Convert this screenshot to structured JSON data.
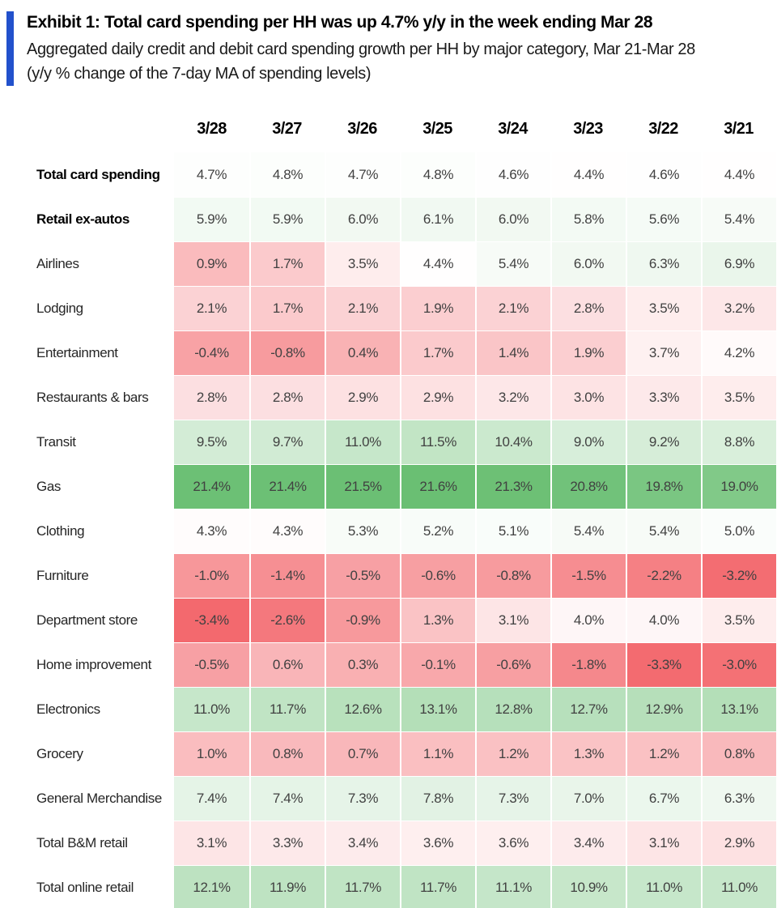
{
  "header": {
    "title": "Exhibit 1: Total card spending per HH was up 4.7% y/y in the week ending Mar 28",
    "subtitle_line1": "Aggregated daily credit and debit card spending growth per HH by major category, Mar 21-Mar 28",
    "subtitle_line2": "(y/y % change of the 7-day MA of spending levels)",
    "accent_bar_color": "#2251cc"
  },
  "chart_data": {
    "type": "heatmap",
    "title": "Aggregated daily credit and debit card spending growth per HH by major category, Mar 21-Mar 28 (y/y % change of the 7-day MA of spending levels)",
    "value_unit": "percent",
    "value_format": "one_decimal_percent",
    "columns": [
      "3/28",
      "3/27",
      "3/26",
      "3/25",
      "3/24",
      "3/23",
      "3/22",
      "3/21"
    ],
    "rows": [
      {
        "label": "Total card spending",
        "bold": true,
        "values": [
          4.7,
          4.8,
          4.7,
          4.8,
          4.6,
          4.4,
          4.6,
          4.4
        ]
      },
      {
        "label": "Retail ex-autos",
        "bold": true,
        "values": [
          5.9,
          5.9,
          6.0,
          6.1,
          6.0,
          5.8,
          5.6,
          5.4
        ]
      },
      {
        "label": "Airlines",
        "bold": false,
        "values": [
          0.9,
          1.7,
          3.5,
          4.4,
          5.4,
          6.0,
          6.3,
          6.9
        ]
      },
      {
        "label": "Lodging",
        "bold": false,
        "values": [
          2.1,
          1.7,
          2.1,
          1.9,
          2.1,
          2.8,
          3.5,
          3.2
        ]
      },
      {
        "label": "Entertainment",
        "bold": false,
        "values": [
          -0.4,
          -0.8,
          0.4,
          1.7,
          1.4,
          1.9,
          3.7,
          4.2
        ]
      },
      {
        "label": "Restaurants & bars",
        "bold": false,
        "values": [
          2.8,
          2.8,
          2.9,
          2.9,
          3.2,
          3.0,
          3.3,
          3.5
        ]
      },
      {
        "label": "Transit",
        "bold": false,
        "values": [
          9.5,
          9.7,
          11.0,
          11.5,
          10.4,
          9.0,
          9.2,
          8.8
        ]
      },
      {
        "label": "Gas",
        "bold": false,
        "values": [
          21.4,
          21.4,
          21.5,
          21.6,
          21.3,
          20.8,
          19.8,
          19.0
        ]
      },
      {
        "label": "Clothing",
        "bold": false,
        "values": [
          4.3,
          4.3,
          5.3,
          5.2,
          5.1,
          5.4,
          5.4,
          5.0
        ]
      },
      {
        "label": "Furniture",
        "bold": false,
        "values": [
          -1.0,
          -1.4,
          -0.5,
          -0.6,
          -0.8,
          -1.5,
          -2.2,
          -3.2
        ]
      },
      {
        "label": "Department store",
        "bold": false,
        "values": [
          -3.4,
          -2.6,
          -0.9,
          1.3,
          3.1,
          4.0,
          4.0,
          3.5
        ]
      },
      {
        "label": "Home improvement",
        "bold": false,
        "values": [
          -0.5,
          0.6,
          0.3,
          -0.1,
          -0.6,
          -1.8,
          -3.3,
          -3.0
        ]
      },
      {
        "label": "Electronics",
        "bold": false,
        "values": [
          11.0,
          11.7,
          12.6,
          13.1,
          12.8,
          12.7,
          12.9,
          13.1
        ]
      },
      {
        "label": "Grocery",
        "bold": false,
        "values": [
          1.0,
          0.8,
          0.7,
          1.1,
          1.2,
          1.3,
          1.2,
          0.8
        ]
      },
      {
        "label": "General Merchandise",
        "bold": false,
        "values": [
          7.4,
          7.4,
          7.3,
          7.8,
          7.3,
          7.0,
          6.7,
          6.3
        ]
      },
      {
        "label": "Total B&M retail",
        "bold": false,
        "values": [
          3.1,
          3.3,
          3.4,
          3.6,
          3.6,
          3.4,
          3.1,
          2.9
        ]
      },
      {
        "label": "Total online retail",
        "bold": false,
        "values": [
          12.1,
          11.9,
          11.7,
          11.7,
          11.1,
          10.9,
          11.0,
          11.0
        ]
      }
    ],
    "color_scale": {
      "min": -3.4,
      "mid": 4.45,
      "max": 21.6,
      "min_color": "#f3696e",
      "mid_color": "#ffffff",
      "max_color": "#6abf73"
    },
    "legend_position": "none",
    "grid": "white-cell-separators"
  }
}
